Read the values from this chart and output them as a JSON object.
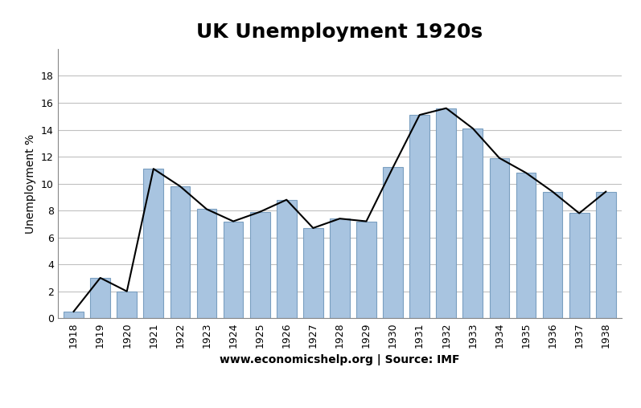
{
  "years": [
    1918,
    1919,
    1920,
    1921,
    1922,
    1923,
    1924,
    1925,
    1926,
    1927,
    1928,
    1929,
    1930,
    1931,
    1932,
    1933,
    1934,
    1935,
    1936,
    1937,
    1938
  ],
  "values": [
    0.5,
    3.0,
    2.0,
    11.1,
    9.8,
    8.1,
    7.2,
    7.9,
    8.8,
    6.7,
    7.4,
    7.2,
    11.2,
    15.1,
    15.6,
    14.1,
    11.9,
    10.8,
    9.4,
    7.8,
    9.4
  ],
  "bar_color": "#a8c4e0",
  "bar_edgecolor": "#7a9fc0",
  "line_color": "#000000",
  "title": "UK Unemployment 1920s",
  "ylabel": "Unemployment %",
  "xlabel": "www.economicshelp.org | Source: IMF",
  "ylim": [
    0,
    20
  ],
  "yticks": [
    0,
    2,
    4,
    6,
    8,
    10,
    12,
    14,
    16,
    18
  ],
  "title_fontsize": 18,
  "label_fontsize": 10,
  "tick_fontsize": 9,
  "background_color": "#ffffff",
  "grid_color": "#c0c0c0"
}
